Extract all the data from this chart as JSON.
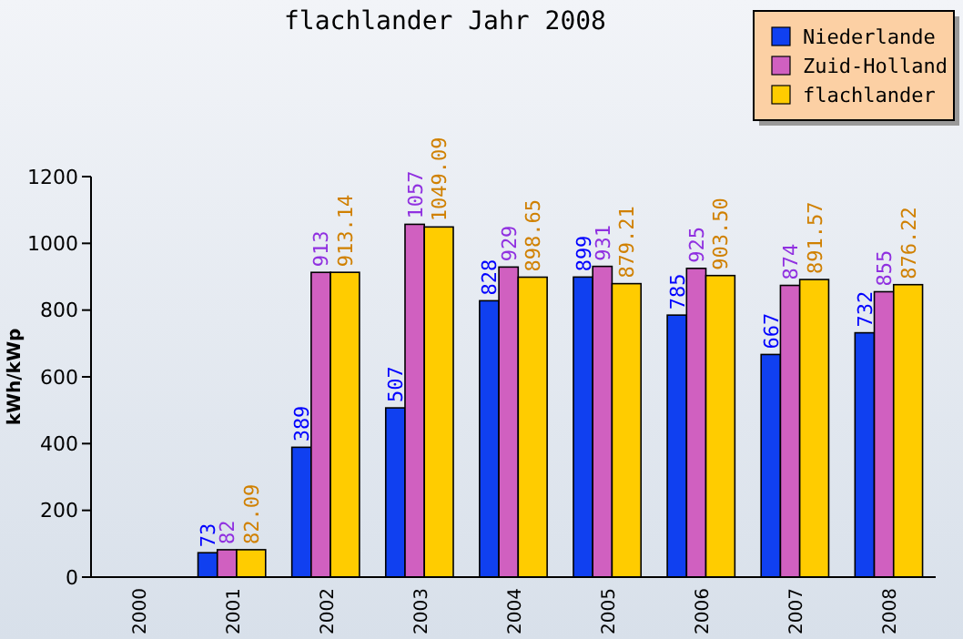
{
  "chart_data": {
    "type": "bar",
    "title": "flachlander Jahr 2008",
    "ylabel": "kWh/kWp",
    "categories": [
      "2000",
      "2001",
      "2002",
      "2003",
      "2004",
      "2005",
      "2006",
      "2007",
      "2008"
    ],
    "series": [
      {
        "name": "Niederlande",
        "color": "#1040f0",
        "values": [
          null,
          73,
          389,
          507,
          828,
          899,
          785,
          667,
          732
        ],
        "value_labels": [
          null,
          "73",
          "389",
          "507",
          "828",
          "899",
          "785",
          "667",
          "732"
        ]
      },
      {
        "name": "Zuid-Holland",
        "color": "#d060c0",
        "values": [
          null,
          82,
          913,
          1057,
          929,
          931,
          925,
          874,
          855
        ],
        "value_labels": [
          null,
          "82",
          "913",
          "1057",
          "929",
          "931",
          "925",
          "874",
          "855"
        ]
      },
      {
        "name": "flachlander",
        "color": "#ffcc00",
        "values": [
          null,
          82.09,
          913.14,
          1049.09,
          898.65,
          879.21,
          903.5,
          891.57,
          876.22
        ],
        "value_labels": [
          null,
          "82.09",
          "913.14",
          "1049.09",
          "898.65",
          "879.21",
          "903.50",
          "891.57",
          "876.22"
        ]
      }
    ],
    "ylim": [
      0,
      1200
    ],
    "yticks": [
      0,
      200,
      400,
      600,
      800,
      1000,
      1200
    ],
    "grid": false,
    "legend": "top right"
  }
}
